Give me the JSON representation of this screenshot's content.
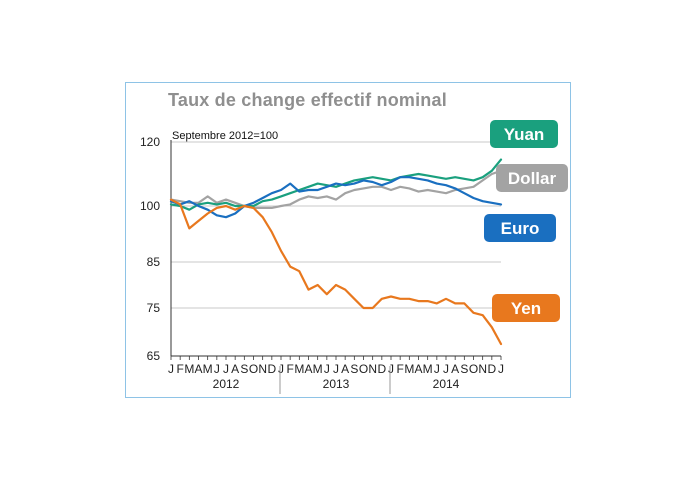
{
  "chart_data": {
    "type": "line",
    "title": "Taux de change effectif nominal",
    "subtitle": "Septembre 2012=100",
    "xlabel": "",
    "ylabel": "",
    "yticks": [
      65,
      75,
      85,
      100,
      120
    ],
    "ylim": [
      65,
      120
    ],
    "month_labels": [
      "J",
      "F",
      "M",
      "A",
      "M",
      "J",
      "J",
      "A",
      "S",
      "O",
      "N",
      "D",
      "J",
      "F",
      "M",
      "A",
      "M",
      "J",
      "J",
      "A",
      "S",
      "O",
      "N",
      "D",
      "J",
      "F",
      "M",
      "A",
      "M",
      "J",
      "J",
      "A",
      "S",
      "O",
      "N",
      "D",
      "J"
    ],
    "years": [
      "2012",
      "2013",
      "2014"
    ],
    "colors": {
      "yuan": "#1aa07e",
      "dollar": "#a3a3a3",
      "euro": "#1a6fc0",
      "yen": "#e8781e",
      "axis": "#333333",
      "gridline": "#c8c8c8",
      "title": "#8f8f8f"
    },
    "series": [
      {
        "name": "Yuan",
        "color": "#1aa07e",
        "x": [
          0,
          1,
          2,
          3,
          4,
          5,
          6,
          7,
          8,
          9,
          10,
          11,
          12,
          13,
          14,
          15,
          16,
          17,
          18,
          19,
          20,
          21,
          22,
          23,
          24,
          25,
          26,
          27,
          28,
          29,
          30,
          31,
          32,
          33,
          34,
          35,
          36
        ],
        "values": [
          100.5,
          100,
          99,
          100.5,
          101,
          100.5,
          101,
          100,
          100,
          100,
          101.5,
          102,
          103,
          104,
          105,
          106,
          107,
          106.5,
          106,
          107,
          108,
          108.5,
          109,
          108.5,
          108,
          109,
          109.5,
          110,
          109.5,
          109,
          108.5,
          109,
          108.5,
          108,
          109,
          111,
          114.5
        ]
      },
      {
        "name": "Dollar",
        "color": "#a3a3a3",
        "x": [
          0,
          1,
          2,
          3,
          4,
          5,
          6,
          7,
          8,
          9,
          10,
          11,
          12,
          13,
          14,
          15,
          16,
          17,
          18,
          19,
          20,
          21,
          22,
          23,
          24,
          25,
          26,
          27,
          28,
          29,
          30,
          31,
          32,
          33,
          34,
          35,
          36
        ],
        "values": [
          102,
          101.5,
          101,
          101,
          103,
          101,
          102,
          101,
          100,
          99.5,
          99.5,
          99.5,
          100,
          100.5,
          102,
          103,
          102.5,
          103,
          102,
          104,
          105,
          105.5,
          106,
          106,
          105,
          106,
          105.5,
          104.5,
          105,
          104.5,
          104,
          105,
          105.5,
          106,
          108,
          110,
          111
        ]
      },
      {
        "name": "Euro",
        "color": "#1a6fc0",
        "x": [
          0,
          1,
          2,
          3,
          4,
          5,
          6,
          7,
          8,
          9,
          10,
          11,
          12,
          13,
          14,
          15,
          16,
          17,
          18,
          19,
          20,
          21,
          22,
          23,
          24,
          25,
          26,
          27,
          28,
          29,
          30,
          31,
          32,
          33,
          34,
          35,
          36
        ],
        "values": [
          101.5,
          100.5,
          101.5,
          100,
          99,
          97.5,
          97,
          98,
          100,
          101,
          102.5,
          104,
          105,
          107,
          104.5,
          105,
          105,
          106,
          107,
          106.5,
          107,
          108,
          107.5,
          106.5,
          107.5,
          109,
          109,
          108.5,
          108,
          107,
          106.5,
          105.5,
          104,
          102.5,
          101.5,
          101,
          100.5
        ]
      },
      {
        "name": "Yen",
        "color": "#e8781e",
        "x": [
          0,
          1,
          2,
          3,
          4,
          5,
          6,
          7,
          8,
          9,
          10,
          11,
          12,
          13,
          14,
          15,
          16,
          17,
          18,
          19,
          20,
          21,
          22,
          23,
          24,
          25,
          26,
          27,
          28,
          29,
          30,
          31,
          32,
          33,
          34,
          35,
          36
        ],
        "values": [
          102,
          100.5,
          94,
          96,
          98,
          99.5,
          100,
          99,
          100,
          99.5,
          97,
          93,
          88,
          84,
          83,
          79,
          80,
          78,
          80,
          79,
          77,
          75,
          75,
          77,
          77.5,
          77,
          77,
          76.5,
          76.5,
          76,
          77,
          76,
          76,
          74,
          73.5,
          71,
          67.5
        ]
      }
    ],
    "legend": [
      {
        "label": "Yuan",
        "color": "#1aa07e"
      },
      {
        "label": "Dollar",
        "color": "#a3a3a3"
      },
      {
        "label": "Euro",
        "color": "#1a6fc0"
      },
      {
        "label": "Yen",
        "color": "#e8781e"
      }
    ]
  }
}
